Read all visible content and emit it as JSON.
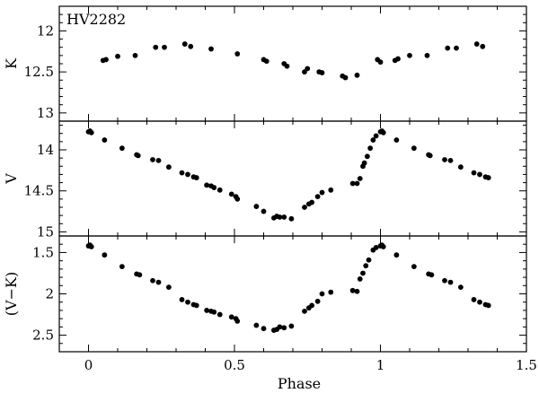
{
  "chart_data": {
    "type": "scatter",
    "star_name": "HV2282",
    "xlabel": "Phase",
    "xlim": [
      -0.1,
      1.5
    ],
    "x_ticks": [
      0,
      0.5,
      1,
      1.5
    ],
    "x_tick_labels": [
      "0",
      "0.5",
      "1",
      "1.5"
    ],
    "grid": false,
    "legend": "none",
    "marker_color": "#000000",
    "panels": [
      {
        "ylabel": "K",
        "ylim": [
          13.1,
          11.7
        ],
        "y_inverted": true,
        "y_ticks": [
          12,
          12.5,
          13
        ],
        "y_tick_labels": [
          "12",
          "12.5",
          "13"
        ],
        "points": [
          [
            0.05,
            12.36
          ],
          [
            0.06,
            12.35
          ],
          [
            0.1,
            12.31
          ],
          [
            0.16,
            12.3
          ],
          [
            0.23,
            12.2
          ],
          [
            0.26,
            12.2
          ],
          [
            0.33,
            12.16
          ],
          [
            0.35,
            12.19
          ],
          [
            0.42,
            12.22
          ],
          [
            0.51,
            12.28
          ],
          [
            0.6,
            12.35
          ],
          [
            0.61,
            12.37
          ],
          [
            0.67,
            12.4
          ],
          [
            0.68,
            12.43
          ],
          [
            0.74,
            12.5
          ],
          [
            0.75,
            12.46
          ],
          [
            0.79,
            12.5
          ],
          [
            0.8,
            12.51
          ],
          [
            0.87,
            12.55
          ],
          [
            0.88,
            12.57
          ],
          [
            0.92,
            12.54
          ],
          [
            0.99,
            12.35
          ],
          [
            1.0,
            12.38
          ],
          [
            1.05,
            12.36
          ],
          [
            1.06,
            12.34
          ],
          [
            1.1,
            12.3
          ],
          [
            1.16,
            12.3
          ],
          [
            1.23,
            12.21
          ],
          [
            1.26,
            12.21
          ],
          [
            1.33,
            12.16
          ],
          [
            1.35,
            12.19
          ]
        ]
      },
      {
        "ylabel": "V",
        "ylim": [
          15.05,
          13.65
        ],
        "y_inverted": true,
        "y_ticks": [
          14,
          14.5,
          15
        ],
        "y_tick_labels": [
          "14",
          "14.5",
          "15"
        ],
        "points": [
          [
            0.0,
            13.78
          ],
          [
            0.005,
            13.77
          ],
          [
            0.01,
            13.79
          ],
          [
            0.055,
            13.88
          ],
          [
            0.115,
            13.98
          ],
          [
            0.165,
            14.06
          ],
          [
            0.17,
            14.07
          ],
          [
            0.22,
            14.12
          ],
          [
            0.24,
            14.13
          ],
          [
            0.275,
            14.21
          ],
          [
            0.32,
            14.28
          ],
          [
            0.34,
            14.3
          ],
          [
            0.36,
            14.33
          ],
          [
            0.37,
            14.34
          ],
          [
            0.405,
            14.43
          ],
          [
            0.42,
            14.44
          ],
          [
            0.43,
            14.46
          ],
          [
            0.45,
            14.49
          ],
          [
            0.49,
            14.54
          ],
          [
            0.505,
            14.57
          ],
          [
            0.51,
            14.6
          ],
          [
            0.575,
            14.69
          ],
          [
            0.6,
            14.75
          ],
          [
            0.635,
            14.83
          ],
          [
            0.645,
            14.81
          ],
          [
            0.655,
            14.82
          ],
          [
            0.67,
            14.82
          ],
          [
            0.695,
            14.84
          ],
          [
            0.74,
            14.7
          ],
          [
            0.755,
            14.66
          ],
          [
            0.765,
            14.64
          ],
          [
            0.785,
            14.57
          ],
          [
            0.8,
            14.52
          ],
          [
            0.83,
            14.49
          ],
          [
            0.905,
            14.41
          ],
          [
            0.92,
            14.41
          ],
          [
            0.93,
            14.35
          ],
          [
            0.94,
            14.2
          ],
          [
            0.945,
            14.16
          ],
          [
            0.955,
            14.08
          ],
          [
            0.965,
            13.98
          ],
          [
            0.975,
            13.88
          ],
          [
            0.985,
            13.83
          ],
          [
            1.0,
            13.78
          ],
          [
            1.005,
            13.77
          ],
          [
            1.01,
            13.79
          ],
          [
            1.055,
            13.88
          ],
          [
            1.115,
            13.98
          ],
          [
            1.165,
            14.06
          ],
          [
            1.17,
            14.07
          ],
          [
            1.22,
            14.12
          ],
          [
            1.24,
            14.13
          ],
          [
            1.275,
            14.21
          ],
          [
            1.32,
            14.28
          ],
          [
            1.34,
            14.3
          ],
          [
            1.36,
            14.33
          ],
          [
            1.37,
            14.34
          ]
        ]
      },
      {
        "ylabel": "(V−K)",
        "ylim": [
          2.7,
          1.3
        ],
        "y_inverted": true,
        "y_ticks": [
          1.5,
          2,
          2.5
        ],
        "y_tick_labels": [
          "1.5",
          "2",
          "2.5"
        ],
        "points": [
          [
            0.0,
            1.42
          ],
          [
            0.005,
            1.41
          ],
          [
            0.01,
            1.43
          ],
          [
            0.055,
            1.53
          ],
          [
            0.115,
            1.67
          ],
          [
            0.165,
            1.76
          ],
          [
            0.175,
            1.77
          ],
          [
            0.22,
            1.84
          ],
          [
            0.24,
            1.86
          ],
          [
            0.275,
            1.92
          ],
          [
            0.32,
            2.07
          ],
          [
            0.34,
            2.1
          ],
          [
            0.36,
            2.13
          ],
          [
            0.37,
            2.14
          ],
          [
            0.405,
            2.2
          ],
          [
            0.42,
            2.21
          ],
          [
            0.43,
            2.22
          ],
          [
            0.45,
            2.25
          ],
          [
            0.49,
            2.28
          ],
          [
            0.505,
            2.3
          ],
          [
            0.51,
            2.33
          ],
          [
            0.575,
            2.38
          ],
          [
            0.6,
            2.42
          ],
          [
            0.635,
            2.44
          ],
          [
            0.645,
            2.43
          ],
          [
            0.655,
            2.4
          ],
          [
            0.67,
            2.41
          ],
          [
            0.695,
            2.39
          ],
          [
            0.74,
            2.21
          ],
          [
            0.755,
            2.17
          ],
          [
            0.765,
            2.14
          ],
          [
            0.785,
            2.09
          ],
          [
            0.8,
            2.0
          ],
          [
            0.83,
            1.98
          ],
          [
            0.905,
            1.96
          ],
          [
            0.92,
            1.97
          ],
          [
            0.93,
            1.82
          ],
          [
            0.94,
            1.75
          ],
          [
            0.95,
            1.66
          ],
          [
            0.96,
            1.59
          ],
          [
            0.975,
            1.47
          ],
          [
            0.985,
            1.44
          ],
          [
            1.0,
            1.42
          ],
          [
            1.005,
            1.41
          ],
          [
            1.01,
            1.43
          ],
          [
            1.055,
            1.53
          ],
          [
            1.115,
            1.67
          ],
          [
            1.165,
            1.76
          ],
          [
            1.175,
            1.77
          ],
          [
            1.22,
            1.84
          ],
          [
            1.24,
            1.86
          ],
          [
            1.275,
            1.92
          ],
          [
            1.32,
            2.07
          ],
          [
            1.34,
            2.1
          ],
          [
            1.36,
            2.13
          ],
          [
            1.37,
            2.14
          ]
        ]
      }
    ]
  }
}
